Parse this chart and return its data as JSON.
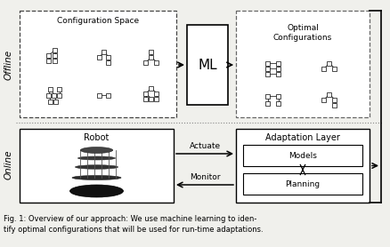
{
  "fig_width": 4.39,
  "fig_height": 2.78,
  "dpi": 100,
  "bg_color": "#f0f0ec",
  "title_text1": "Fig. 1: Overview of our approach: We use machine learning to iden-",
  "title_text2": "tify optimal configurations that will be used for run-time adaptations.",
  "offline_label": "Offline",
  "online_label": "Online",
  "config_space_label": "Configuration Space",
  "ml_label": "ML",
  "optimal_config_label": "Optimal\nConfigurations",
  "robot_label": "Robot",
  "adaptation_layer_label": "Adaptation Layer",
  "models_label": "Models",
  "planning_label": "Planning",
  "actuate_label": "Actuate",
  "monitor_label": "Monitor"
}
